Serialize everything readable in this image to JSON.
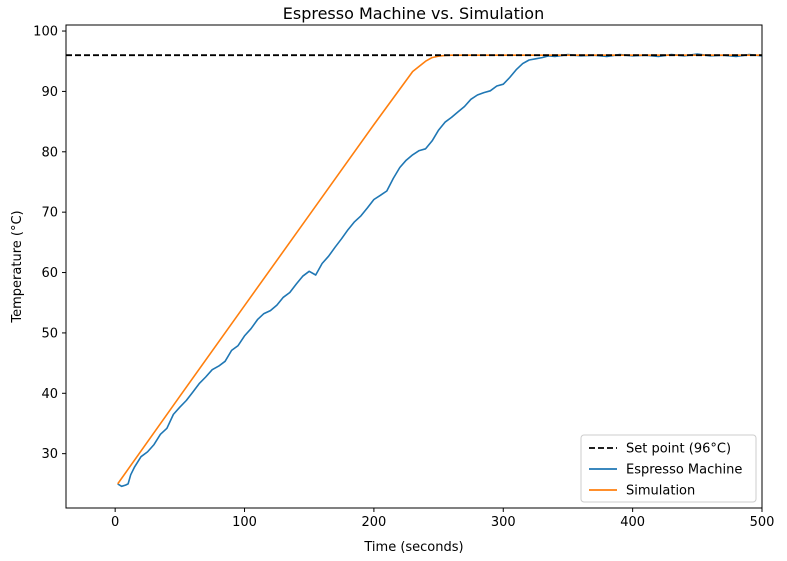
{
  "chart_data": {
    "type": "line",
    "title": "Espresso Machine vs. Simulation",
    "xlabel": "Time (seconds)",
    "ylabel": "Temperature (°C)",
    "xlim": [
      -38,
      500
    ],
    "ylim": [
      21,
      101
    ],
    "xticks": [
      0,
      100,
      200,
      300,
      400,
      500
    ],
    "yticks": [
      30,
      40,
      50,
      60,
      70,
      80,
      90,
      100
    ],
    "grid": false,
    "legend_position": "lower-right",
    "set_point": {
      "name": "Set point (96°C)",
      "value": 96,
      "color": "#000000",
      "style": "dashed"
    },
    "series": [
      {
        "name": "Espresso Machine",
        "color": "#1f77b4",
        "x": [
          2,
          5,
          8,
          10,
          12,
          15,
          20,
          25,
          30,
          35,
          40,
          45,
          50,
          55,
          60,
          65,
          70,
          75,
          80,
          85,
          90,
          95,
          100,
          105,
          110,
          115,
          120,
          125,
          130,
          135,
          140,
          145,
          150,
          155,
          160,
          165,
          170,
          175,
          180,
          185,
          190,
          195,
          200,
          205,
          210,
          215,
          220,
          225,
          230,
          235,
          240,
          245,
          250,
          255,
          260,
          265,
          270,
          275,
          280,
          285,
          290,
          295,
          300,
          305,
          310,
          315,
          320,
          325,
          330,
          335,
          340,
          350,
          360,
          370,
          380,
          390,
          400,
          410,
          420,
          430,
          440,
          450,
          460,
          470,
          480,
          490,
          500
        ],
        "y": [
          25,
          24.6,
          24.8,
          25,
          26.5,
          27.8,
          29.5,
          30.3,
          31.5,
          33.2,
          34.2,
          36.5,
          37.7,
          38.8,
          40.2,
          41.6,
          42.7,
          43.9,
          44.5,
          45.3,
          47.1,
          47.9,
          49.5,
          50.7,
          52.2,
          53.2,
          53.7,
          54.6,
          55.9,
          56.7,
          58.1,
          59.4,
          60.2,
          59.6,
          61.5,
          62.7,
          64.2,
          65.6,
          67.1,
          68.4,
          69.4,
          70.7,
          72.1,
          72.8,
          73.5,
          75.6,
          77.4,
          78.6,
          79.5,
          80.2,
          80.5,
          81.8,
          83.6,
          84.9,
          85.7,
          86.6,
          87.5,
          88.7,
          89.4,
          89.8,
          90.1,
          90.9,
          91.2,
          92.3,
          93.6,
          94.6,
          95.2,
          95.4,
          95.6,
          95.9,
          95.8,
          96.1,
          95.9,
          96.0,
          95.8,
          96.1,
          95.9,
          96.0,
          95.8,
          96.1,
          95.9,
          96.2,
          95.9,
          96.0,
          95.8,
          96.1,
          95.9
        ]
      },
      {
        "name": "Simulation",
        "color": "#ff7f0e",
        "x": [
          2,
          50,
          100,
          150,
          200,
          230,
          240,
          245,
          250,
          255,
          260,
          270,
          280,
          300,
          350,
          400,
          450,
          500
        ],
        "y": [
          25,
          39.5,
          54.5,
          69.5,
          84.5,
          93.3,
          95.0,
          95.6,
          95.85,
          95.95,
          96.0,
          96.0,
          96.0,
          96.0,
          96.0,
          96.0,
          96.0,
          96.0
        ]
      }
    ]
  }
}
